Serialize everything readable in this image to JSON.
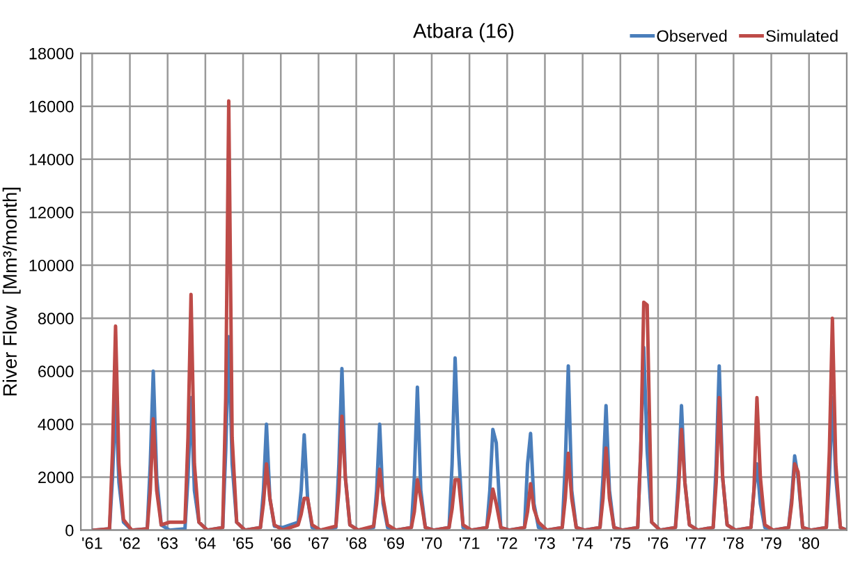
{
  "chart_data": {
    "type": "line",
    "title": "Atbara (16)",
    "ylabel": "River Flow  [Mm³/month]",
    "x": [
      1961.05,
      1961.46,
      1961.54,
      1961.62,
      1961.71,
      1961.83,
      1962.05,
      1962.46,
      1962.54,
      1962.62,
      1962.71,
      1962.83,
      1963.05,
      1963.46,
      1963.54,
      1963.62,
      1963.71,
      1963.83,
      1964.05,
      1964.46,
      1964.54,
      1964.62,
      1964.71,
      1964.83,
      1965.05,
      1965.46,
      1965.54,
      1965.62,
      1965.71,
      1965.83,
      1966.05,
      1966.46,
      1966.54,
      1966.62,
      1966.71,
      1966.83,
      1967.05,
      1967.46,
      1967.54,
      1967.62,
      1967.71,
      1967.83,
      1968.05,
      1968.46,
      1968.54,
      1968.62,
      1968.71,
      1968.83,
      1969.05,
      1969.46,
      1969.54,
      1969.62,
      1969.71,
      1969.83,
      1970.05,
      1970.46,
      1970.54,
      1970.62,
      1970.71,
      1970.83,
      1971.05,
      1971.46,
      1971.54,
      1971.62,
      1971.71,
      1971.83,
      1972.05,
      1972.46,
      1972.54,
      1972.62,
      1972.71,
      1972.83,
      1973.05,
      1973.46,
      1973.54,
      1973.62,
      1973.71,
      1973.83,
      1974.05,
      1974.46,
      1974.54,
      1974.62,
      1974.71,
      1974.83,
      1975.05,
      1975.46,
      1975.54,
      1975.62,
      1975.71,
      1975.83,
      1976.05,
      1976.46,
      1976.54,
      1976.62,
      1976.71,
      1976.83,
      1977.05,
      1977.46,
      1977.54,
      1977.62,
      1977.71,
      1977.83,
      1978.05,
      1978.46,
      1978.54,
      1978.62,
      1978.71,
      1978.83,
      1979.05,
      1979.46,
      1979.54,
      1979.62,
      1979.71,
      1979.83,
      1980.05,
      1980.46,
      1980.54,
      1980.62,
      1980.71,
      1980.83,
      1981.0
    ],
    "series": [
      {
        "name": "Observed",
        "color": "#4a7ebb",
        "values": [
          0,
          50,
          2000,
          5000,
          1800,
          300,
          0,
          50,
          2500,
          6000,
          2000,
          200,
          0,
          50,
          2000,
          5000,
          1500,
          300,
          0,
          100,
          3000,
          7300,
          2500,
          300,
          0,
          100,
          1500,
          4000,
          1200,
          150,
          100,
          300,
          1500,
          3600,
          1200,
          100,
          0,
          100,
          2500,
          6100,
          2000,
          200,
          0,
          100,
          1500,
          4000,
          1000,
          100,
          0,
          100,
          2000,
          5400,
          1500,
          100,
          0,
          100,
          2500,
          6500,
          3000,
          100,
          0,
          100,
          1500,
          3800,
          3300,
          100,
          0,
          100,
          2500,
          3650,
          1000,
          100,
          0,
          100,
          2500,
          6200,
          1500,
          100,
          0,
          100,
          2000,
          4700,
          1500,
          100,
          0,
          100,
          3000,
          6900,
          3000,
          300,
          0,
          100,
          2000,
          4700,
          1800,
          200,
          0,
          100,
          2500,
          6200,
          2000,
          200,
          0,
          100,
          1500,
          2500,
          1000,
          100,
          0,
          100,
          1200,
          2800,
          2000,
          100,
          0,
          100,
          2000,
          5000,
          2000,
          100,
          0
        ]
      },
      {
        "name": "Simulated",
        "color": "#be4b48",
        "values": [
          0,
          50,
          3000,
          7700,
          2500,
          400,
          0,
          50,
          1500,
          4200,
          1500,
          200,
          300,
          300,
          3500,
          8900,
          2500,
          300,
          0,
          100,
          5000,
          16200,
          3500,
          300,
          0,
          100,
          1000,
          2500,
          1200,
          200,
          0,
          200,
          600,
          1200,
          1200,
          200,
          0,
          150,
          1500,
          4300,
          2000,
          200,
          0,
          150,
          1000,
          2300,
          1200,
          200,
          0,
          100,
          700,
          1900,
          1200,
          100,
          0,
          100,
          800,
          1900,
          1900,
          200,
          0,
          100,
          700,
          1550,
          1000,
          100,
          0,
          100,
          700,
          1750,
          800,
          300,
          0,
          100,
          1200,
          2900,
          1200,
          100,
          0,
          100,
          1200,
          3100,
          1200,
          100,
          0,
          100,
          3000,
          8600,
          8500,
          300,
          0,
          100,
          1500,
          3800,
          1800,
          200,
          0,
          100,
          1800,
          5000,
          2000,
          200,
          0,
          100,
          1500,
          5000,
          2000,
          200,
          0,
          100,
          1000,
          2500,
          2200,
          100,
          0,
          100,
          3000,
          8000,
          2500,
          100,
          0
        ]
      }
    ],
    "xlim": [
      1960.7,
      1981
    ],
    "xticks": [
      {
        "value": 1961,
        "label": "'61"
      },
      {
        "value": 1962,
        "label": "'62"
      },
      {
        "value": 1963,
        "label": "'63"
      },
      {
        "value": 1964,
        "label": "'64"
      },
      {
        "value": 1965,
        "label": "'65"
      },
      {
        "value": 1966,
        "label": "'66"
      },
      {
        "value": 1967,
        "label": "'67"
      },
      {
        "value": 1968,
        "label": "'68"
      },
      {
        "value": 1969,
        "label": "'69"
      },
      {
        "value": 1970,
        "label": "'70"
      },
      {
        "value": 1971,
        "label": "'71"
      },
      {
        "value": 1972,
        "label": "'72"
      },
      {
        "value": 1973,
        "label": "'73"
      },
      {
        "value": 1974,
        "label": "'74"
      },
      {
        "value": 1975,
        "label": "'75"
      },
      {
        "value": 1976,
        "label": "'76"
      },
      {
        "value": 1977,
        "label": "'77"
      },
      {
        "value": 1978,
        "label": "'78"
      },
      {
        "value": 1979,
        "label": "'79"
      },
      {
        "value": 1980,
        "label": "'80"
      }
    ],
    "ylim": [
      0,
      18000
    ],
    "yticks": [
      0,
      2000,
      4000,
      6000,
      8000,
      10000,
      12000,
      14000,
      16000,
      18000
    ],
    "grid": true,
    "legend": "top right",
    "marker": "none",
    "line_style": "solid"
  }
}
